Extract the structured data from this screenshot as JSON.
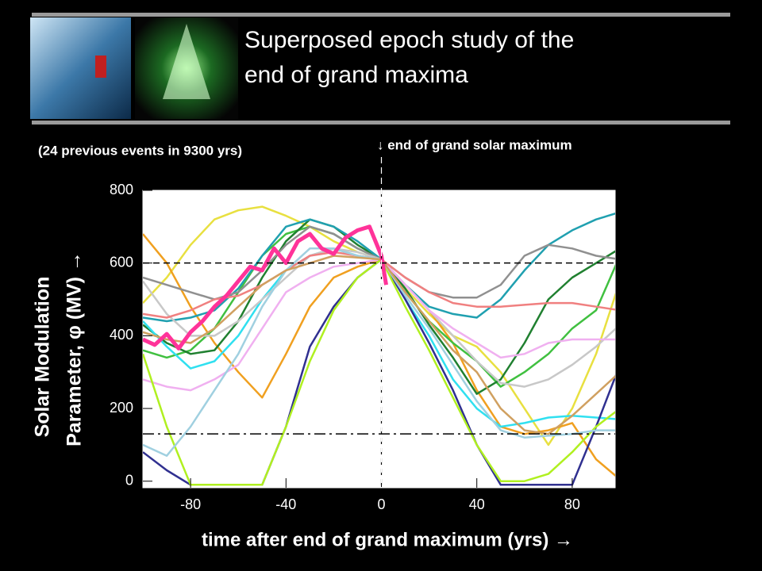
{
  "title": [
    "Superposed epoch study of the",
    "end of grand maxima"
  ],
  "chart_data": {
    "type": "line",
    "note_left": "(24 previous events in 9300 yrs)",
    "annotation": "↓ end of grand solar maximum",
    "y_label": [
      "Solar Modulation",
      "Parameter,  φ  (MV)     →"
    ],
    "x_label": "time after end of grand maximum (yrs)  →",
    "xlim": [
      -100,
      98
    ],
    "ylim": [
      -18,
      800
    ],
    "xticks": [
      -80,
      -40,
      0,
      40,
      80
    ],
    "yticks": [
      0,
      200,
      400,
      600,
      800
    ],
    "hlines": [
      {
        "value": 600,
        "style": "dashed"
      },
      {
        "value": 130,
        "style": "dashdot"
      }
    ],
    "vlines": [
      {
        "value": 0,
        "style": "dashed"
      }
    ],
    "x": [
      -100,
      -90,
      -80,
      -70,
      -60,
      -50,
      -40,
      -30,
      -20,
      -10,
      0,
      10,
      20,
      30,
      40,
      50,
      60,
      70,
      80,
      90,
      100
    ],
    "series": [
      {
        "color": "#e8e040",
        "values": [
          490,
          560,
          650,
          720,
          745,
          755,
          730,
          700,
          660,
          630,
          610,
          530,
          460,
          400,
          370,
          300,
          200,
          100,
          200,
          350,
          550
        ]
      },
      {
        "color": "#f0a020",
        "values": [
          680,
          600,
          480,
          380,
          300,
          230,
          350,
          480,
          560,
          590,
          610,
          540,
          470,
          380,
          250,
          150,
          130,
          140,
          160,
          60,
          5
        ]
      },
      {
        "color": "#40c040",
        "values": [
          360,
          340,
          360,
          420,
          520,
          620,
          680,
          700,
          680,
          640,
          610,
          520,
          440,
          380,
          330,
          260,
          300,
          350,
          420,
          470,
          620
        ]
      },
      {
        "color": "#208030",
        "values": [
          430,
          380,
          350,
          360,
          440,
          560,
          660,
          720,
          700,
          650,
          610,
          530,
          430,
          340,
          240,
          280,
          380,
          500,
          560,
          600,
          640
        ]
      },
      {
        "color": "#30e0f0",
        "values": [
          440,
          370,
          310,
          330,
          400,
          500,
          580,
          620,
          640,
          620,
          610,
          500,
          400,
          280,
          200,
          150,
          160,
          175,
          180,
          175,
          170
        ]
      },
      {
        "color": "#20a0b0",
        "values": [
          450,
          440,
          450,
          470,
          530,
          620,
          700,
          720,
          700,
          660,
          610,
          540,
          480,
          460,
          450,
          500,
          580,
          650,
          690,
          720,
          740
        ]
      },
      {
        "color": "#909090",
        "values": [
          560,
          540,
          520,
          500,
          520,
          580,
          650,
          700,
          680,
          640,
          610,
          560,
          520,
          505,
          505,
          540,
          620,
          650,
          640,
          620,
          610
        ]
      },
      {
        "color": "#c8c8c8",
        "values": [
          550,
          460,
          400,
          400,
          440,
          500,
          560,
          620,
          640,
          630,
          610,
          540,
          470,
          400,
          330,
          270,
          260,
          280,
          320,
          370,
          430
        ]
      },
      {
        "color": "#f0b0f0",
        "values": [
          280,
          260,
          250,
          280,
          320,
          420,
          520,
          560,
          590,
          600,
          610,
          540,
          470,
          420,
          380,
          340,
          350,
          380,
          390,
          390,
          390
        ]
      },
      {
        "color": "#f08080",
        "values": [
          460,
          450,
          470,
          500,
          510,
          540,
          580,
          620,
          630,
          620,
          610,
          560,
          520,
          490,
          480,
          480,
          485,
          490,
          490,
          480,
          470
        ]
      },
      {
        "color": "#303090",
        "values": [
          80,
          30,
          -10,
          -10,
          -10,
          -10,
          150,
          370,
          480,
          560,
          610,
          500,
          380,
          250,
          100,
          -10,
          -10,
          -10,
          -10,
          150,
          320
        ]
      },
      {
        "color": "#b0f020",
        "values": [
          350,
          150,
          -10,
          -10,
          -10,
          -10,
          150,
          330,
          470,
          560,
          610,
          480,
          360,
          230,
          100,
          0,
          0,
          20,
          80,
          150,
          200
        ]
      },
      {
        "color": "#a0d0e0",
        "values": [
          100,
          70,
          150,
          250,
          350,
          480,
          580,
          640,
          640,
          620,
          610,
          510,
          420,
          320,
          220,
          140,
          120,
          125,
          130,
          140,
          140
        ]
      },
      {
        "color": "#d0a060",
        "values": [
          410,
          390,
          380,
          420,
          480,
          540,
          580,
          600,
          620,
          615,
          610,
          520,
          440,
          360,
          300,
          200,
          140,
          130,
          180,
          240,
          300
        ]
      },
      {
        "color": "#ff3399",
        "width": 5,
        "x": [
          -100,
          -95,
          -90,
          -85,
          -80,
          -75,
          -70,
          -65,
          -60,
          -55,
          -50,
          -45,
          -40,
          -35,
          -30,
          -25,
          -20,
          -15,
          -10,
          -5,
          0,
          2
        ],
        "values": [
          390,
          375,
          405,
          365,
          410,
          440,
          480,
          510,
          550,
          590,
          580,
          640,
          600,
          660,
          680,
          640,
          625,
          670,
          690,
          700,
          620,
          540
        ]
      }
    ]
  }
}
